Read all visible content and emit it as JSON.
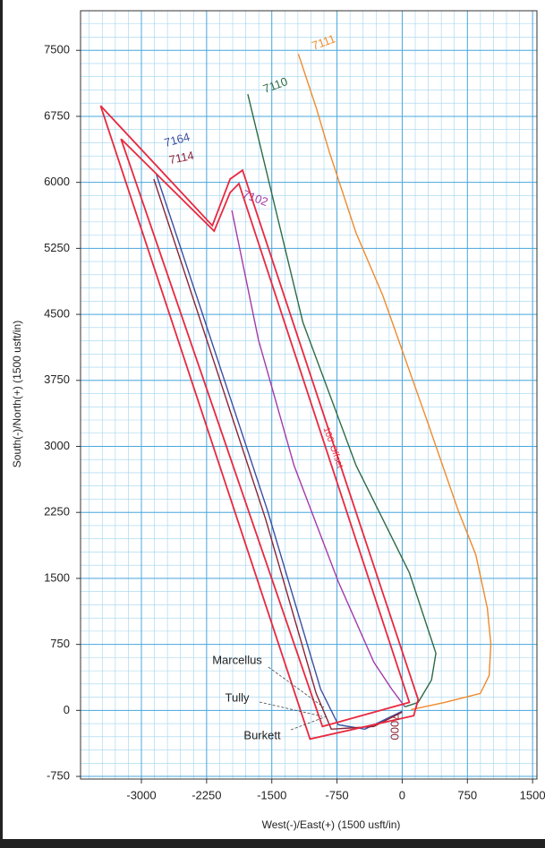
{
  "chart_data": {
    "type": "line",
    "xlabel": "West(-)/East(+) (1500 usft/in)",
    "ylabel": "South(-)/North(+) (1500 usft/in)",
    "xlim": [
      -3700,
      1550
    ],
    "ylim": [
      -780,
      7950
    ],
    "xticks": [
      -3000,
      -2250,
      -1500,
      -750,
      0,
      750,
      1500
    ],
    "yticks": [
      -750,
      0,
      750,
      1500,
      2250,
      3000,
      3750,
      4500,
      5250,
      6000,
      6750,
      7500
    ],
    "grid": true,
    "series": [
      {
        "name": "7111",
        "color": "#f08a2c",
        "x": [
          102,
          490,
          898,
          1000,
          1020,
          980,
          847,
          643,
          286,
          -224,
          -531,
          -837,
          -990,
          -1194
        ],
        "values": [
          10,
          91,
          193,
          396,
          752,
          1159,
          1768,
          2276,
          3293,
          4715,
          5427,
          6341,
          6850,
          7459
        ]
      },
      {
        "name": "7110",
        "color": "#2e6b45",
        "x": [
          31,
          184,
          337,
          388,
          286,
          82,
          -531,
          -1143,
          -1776
        ],
        "values": [
          41,
          91,
          346,
          650,
          955,
          1565,
          2785,
          4411,
          7002
        ]
      },
      {
        "name": "7102",
        "color": "#a43aa8",
        "x": [
          31,
          -122,
          -327,
          -735,
          -1245,
          -1653,
          -1959
        ],
        "values": [
          41,
          244,
          549,
          1463,
          2785,
          4207,
          5681
        ]
      },
      {
        "name": "7164",
        "color": "#3c4ea0",
        "x": [
          -2827,
          -2061,
          -1551,
          -939,
          -735,
          -429,
          0
        ],
        "values": [
          6087,
          3801,
          2276,
          244,
          -163,
          -213,
          -10
        ]
      },
      {
        "name": "7114",
        "color": "#8a2436",
        "x": [
          -2857,
          -2112,
          -1571,
          -990,
          -816,
          -327,
          0
        ],
        "values": [
          6037,
          3801,
          2174,
          193,
          -213,
          -183,
          -20
        ]
      },
      {
        "color": "#e8293f",
        "x": [
          -3469,
          -2184,
          -1980,
          -1837,
          184,
          133,
          -1061,
          -3469
        ],
        "values": [
          6870,
          5508,
          6037,
          6138,
          122,
          -61,
          -325,
          6870
        ]
      },
      {
        "color": "#e8293f",
        "x": [
          -3235,
          -2163,
          -1980,
          -1878,
          82,
          -918,
          -3235
        ],
        "values": [
          6494,
          5447,
          5884,
          5986,
          91,
          -183,
          6494
        ]
      }
    ],
    "annotations": [
      "Marcellus",
      "Tully",
      "Burkett",
      "100' Offset",
      "7000"
    ]
  }
}
